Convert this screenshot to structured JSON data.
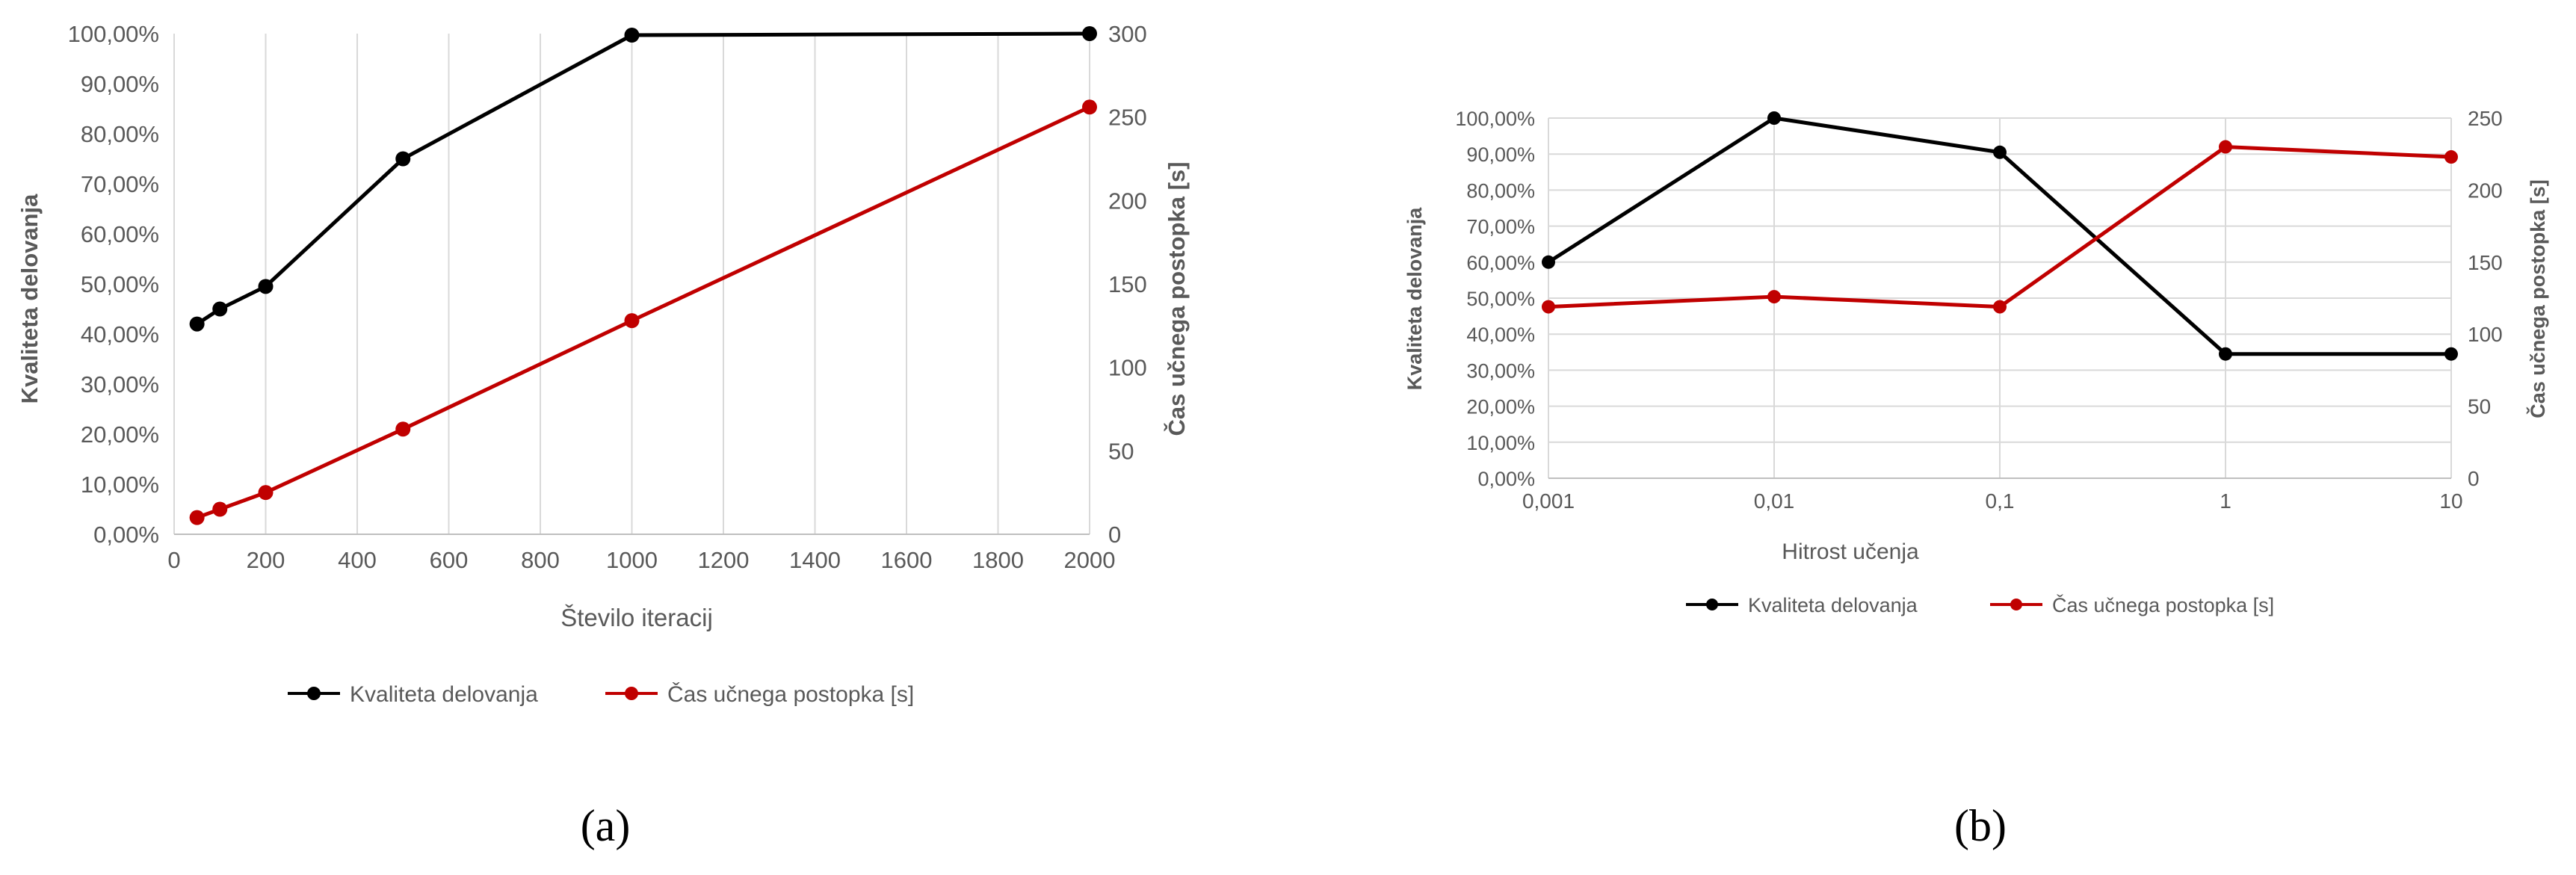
{
  "colors": {
    "quality": "#000000",
    "time": "#c00000",
    "grid": "#d9d9d9",
    "text": "#595959"
  },
  "panels": [
    {
      "panel_label": "(a)",
      "legend": [
        {
          "text": "Kvaliteta delovanja",
          "color": "#000000"
        },
        {
          "text": "Čas učnega postopka [s]",
          "color": "#c00000"
        }
      ]
    },
    {
      "panel_label": "(b)",
      "legend": [
        {
          "text": "Kvaliteta delovanja",
          "color": "#000000"
        },
        {
          "text": "Čas učnega postopka [s]",
          "color": "#c00000"
        }
      ]
    }
  ],
  "chart_data": [
    {
      "type": "line",
      "xlabel": "Število iteracij",
      "ylabel": "Kvaliteta delovanja",
      "y2label": "Čas učnega postopka [s]",
      "xlim": [
        0,
        2000
      ],
      "ylim": [
        0,
        1
      ],
      "y2lim": [
        0,
        300
      ],
      "x_ticks": [
        "0",
        "200",
        "400",
        "600",
        "800",
        "1000",
        "1200",
        "1400",
        "1600",
        "1800",
        "2000"
      ],
      "y_ticks": [
        "0,00%",
        "10,00%",
        "20,00%",
        "30,00%",
        "40,00%",
        "50,00%",
        "60,00%",
        "70,00%",
        "80,00%",
        "90,00%",
        "100,00%"
      ],
      "y2_ticks": [
        "0",
        "50",
        "100",
        "150",
        "200",
        "250",
        "300"
      ],
      "grid": "vertical",
      "legend_position": "bottom",
      "x": [
        50,
        100,
        200,
        500,
        1000,
        2000
      ],
      "series": [
        {
          "name": "Kvaliteta delovanja",
          "axis": "left",
          "values": [
            0.42,
            0.45,
            0.495,
            0.75,
            0.997,
            1.0
          ]
        },
        {
          "name": "Čas učnega postopka [s]",
          "axis": "right",
          "values": [
            10,
            15,
            25,
            63,
            128,
            256
          ]
        }
      ]
    },
    {
      "type": "line",
      "xlabel": "Hitrost učenja",
      "ylabel": "Kvaliteta delovanja",
      "y2label": "Čas učnega postopka [s]",
      "x_scale": "log",
      "ylim": [
        0,
        1
      ],
      "y2lim": [
        0,
        250
      ],
      "categories": [
        "0,001",
        "0,01",
        "0,1",
        "1",
        "10"
      ],
      "y_ticks": [
        "0,00%",
        "10,00%",
        "20,00%",
        "30,00%",
        "40,00%",
        "50,00%",
        "60,00%",
        "70,00%",
        "80,00%",
        "90,00%",
        "100,00%"
      ],
      "y2_ticks": [
        "0",
        "50",
        "100",
        "150",
        "200",
        "250"
      ],
      "grid": "both",
      "legend_position": "bottom",
      "series": [
        {
          "name": "Kvaliteta delovanja",
          "axis": "left",
          "values": [
            0.6,
            1.0,
            0.905,
            0.345,
            0.345
          ]
        },
        {
          "name": "Čas učnega postopka [s]",
          "axis": "right",
          "values": [
            119,
            126,
            119,
            230,
            223
          ]
        }
      ]
    }
  ]
}
